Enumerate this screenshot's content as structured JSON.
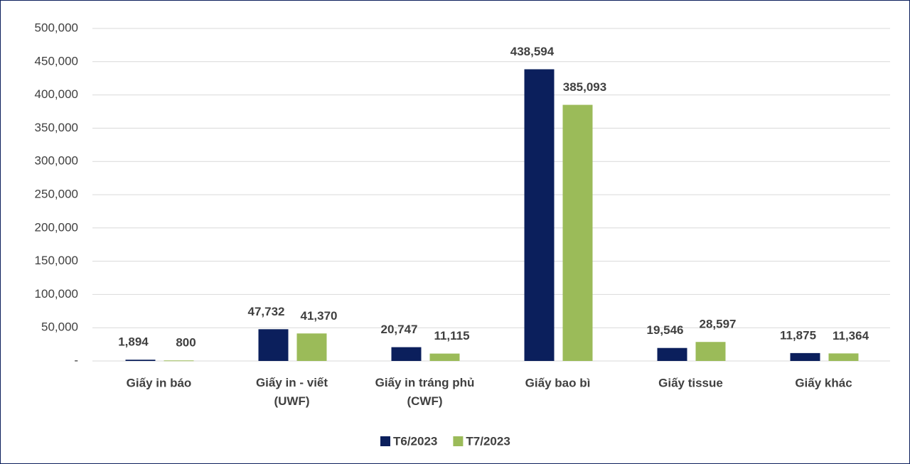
{
  "chart_data": {
    "type": "bar",
    "categories": [
      "Giấy in báo",
      "Giấy in - viết (UWF)",
      "Giấy in tráng phủ (CWF)",
      "Giấy bao bì",
      "Giấy tissue",
      "Giấy khác"
    ],
    "series": [
      {
        "name": "T6/2023",
        "color": "#0b1f5c",
        "values": [
          1894,
          47732,
          20747,
          438594,
          19546,
          11875
        ],
        "value_labels": [
          "1,894",
          "47,732",
          "20,747",
          "438,594",
          "19,546",
          "11,875"
        ]
      },
      {
        "name": "T7/2023",
        "color": "#9bbb59",
        "values": [
          800,
          41370,
          11115,
          385093,
          28597,
          11364
        ],
        "value_labels": [
          "800",
          "41,370",
          "11,115",
          "385,093",
          "28,597",
          "11,364"
        ]
      }
    ],
    "ylim": [
      0,
      500000
    ],
    "yticks": [
      {
        "value": 0,
        "label": "-"
      },
      {
        "value": 50000,
        "label": "50,000"
      },
      {
        "value": 100000,
        "label": "100,000"
      },
      {
        "value": 150000,
        "label": "150,000"
      },
      {
        "value": 200000,
        "label": "200,000"
      },
      {
        "value": 250000,
        "label": "250,000"
      },
      {
        "value": 300000,
        "label": "300,000"
      },
      {
        "value": 350000,
        "label": "350,000"
      },
      {
        "value": 400000,
        "label": "400,000"
      },
      {
        "value": 450000,
        "label": "450,000"
      },
      {
        "value": 500000,
        "label": "500,000"
      }
    ],
    "grid": true,
    "legend": "bottom"
  }
}
